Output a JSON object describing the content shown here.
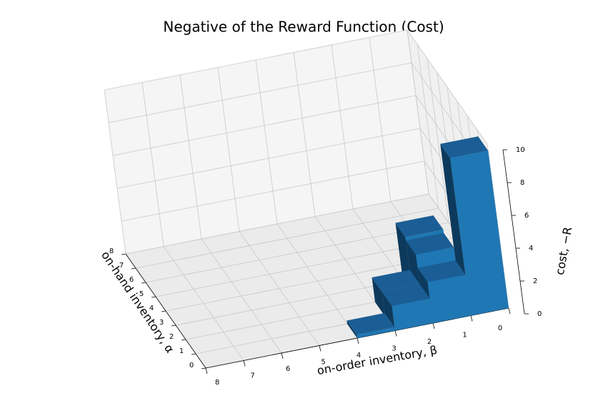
{
  "chart_data": {
    "type": "bar3d",
    "title": "Negative of the Reward Function (Cost)",
    "xlabel": "on-hand inventory, α",
    "ylabel": "on-order inventory, β",
    "zlabel": "cost, −R",
    "x": [
      0,
      0,
      0,
      0,
      1,
      1,
      2
    ],
    "y": [
      0,
      1,
      2,
      3,
      1,
      2,
      1
    ],
    "values": [
      9.6,
      2.5,
      1.5,
      0.2,
      3.3,
      1.5,
      3.5
    ],
    "color": "#1f77b4",
    "xlim": [
      0,
      8
    ],
    "xticks": [
      0,
      1,
      2,
      3,
      4,
      5,
      6,
      7,
      8
    ],
    "ylim": [
      0,
      8
    ],
    "yticks": [
      0,
      1,
      2,
      3,
      4,
      5,
      6,
      7,
      8
    ],
    "zlim": [
      0,
      10
    ],
    "zticks": [
      0,
      2,
      4,
      6,
      8,
      10
    ],
    "grid": true
  }
}
